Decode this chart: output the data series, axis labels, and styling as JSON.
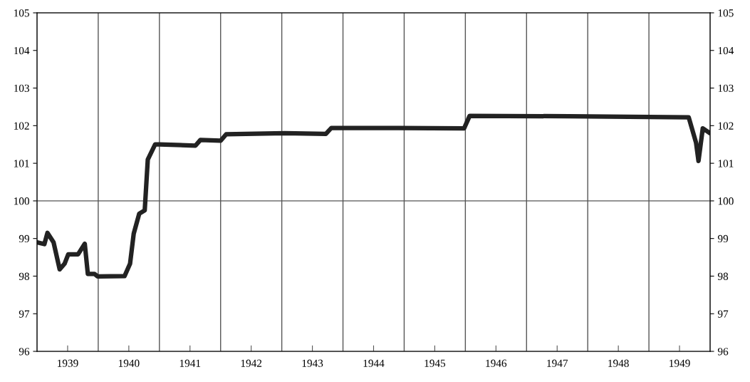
{
  "chart_data": {
    "type": "line",
    "x": [
      1939.0,
      1939.12,
      1939.17,
      1939.27,
      1939.37,
      1939.45,
      1939.51,
      1939.67,
      1939.78,
      1939.83,
      1939.94,
      1939.99,
      1940.43,
      1940.52,
      1940.58,
      1940.67,
      1940.76,
      1940.81,
      1940.93,
      1941.0,
      1941.59,
      1941.67,
      1942.0,
      1942.09,
      1943.05,
      1943.72,
      1943.81,
      1944.91,
      1945.98,
      1946.07,
      1947.7,
      1949.65,
      1949.77,
      1949.81,
      1949.88,
      1949.98
    ],
    "series": [
      {
        "color": "#222222",
        "values": [
          98.9,
          98.85,
          99.15,
          98.9,
          98.18,
          98.33,
          98.58,
          98.58,
          98.86,
          98.06,
          98.06,
          97.99,
          98.0,
          98.33,
          99.13,
          99.66,
          99.75,
          101.1,
          101.5,
          101.5,
          101.47,
          101.62,
          101.6,
          101.77,
          101.8,
          101.78,
          101.94,
          101.94,
          101.93,
          102.26,
          102.25,
          102.22,
          101.55,
          101.06,
          101.93,
          101.82
        ]
      }
    ],
    "xlim": [
      1939,
      1950
    ],
    "xticks": [
      {
        "value": 1939.5,
        "label": "1939"
      },
      {
        "value": 1940.5,
        "label": "1940"
      },
      {
        "value": 1941.5,
        "label": "1941"
      },
      {
        "value": 1942.5,
        "label": "1942"
      },
      {
        "value": 1943.5,
        "label": "1943"
      },
      {
        "value": 1944.5,
        "label": "1944"
      },
      {
        "value": 1945.5,
        "label": "1945"
      },
      {
        "value": 1946.5,
        "label": "1946"
      },
      {
        "value": 1947.5,
        "label": "1947"
      },
      {
        "value": 1948.5,
        "label": "1948"
      },
      {
        "value": 1949.5,
        "label": "1949"
      }
    ],
    "ylim": [
      96,
      105
    ],
    "yticks": [
      96,
      97,
      98,
      99,
      100,
      101,
      102,
      103,
      104,
      105
    ],
    "y2lim": [
      96,
      105
    ],
    "y2ticks": [
      96,
      97,
      98,
      99,
      100,
      101,
      102,
      103,
      104,
      105
    ],
    "ref_lines": [
      {
        "axis": "x",
        "value": 1940
      },
      {
        "axis": "x",
        "value": 1941
      },
      {
        "axis": "x",
        "value": 1942
      },
      {
        "axis": "x",
        "value": 1943
      },
      {
        "axis": "x",
        "value": 1944
      },
      {
        "axis": "x",
        "value": 1945
      },
      {
        "axis": "x",
        "value": 1946
      },
      {
        "axis": "x",
        "value": 1947
      },
      {
        "axis": "x",
        "value": 1948
      },
      {
        "axis": "x",
        "value": 1949
      },
      {
        "axis": "y",
        "value": 100
      }
    ],
    "grid": false,
    "legend": false,
    "marker": "none",
    "line_style": "solid"
  }
}
